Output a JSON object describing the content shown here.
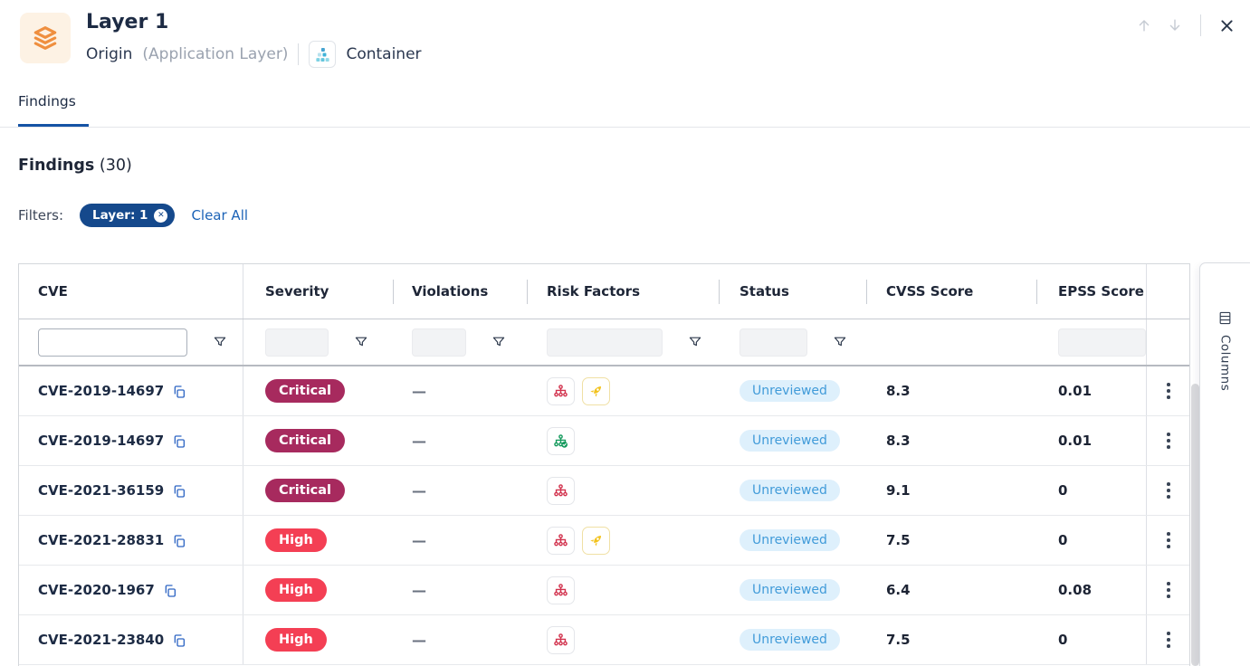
{
  "window": {
    "title": "Layer 1",
    "subtitle_primary": "Origin",
    "subtitle_secondary": "(Application Layer)",
    "asset_type_label": "Container"
  },
  "tabs": {
    "findings_label": "Findings"
  },
  "section": {
    "heading": "Findings",
    "count": "(30)",
    "filters_label": "Filters:",
    "filter_chip_label": "Layer: 1",
    "clear_all_label": "Clear All"
  },
  "table": {
    "headers": [
      "CVE",
      "Severity",
      "Violations",
      "Risk Factors",
      "Status",
      "CVSS Score",
      "EPSS Score"
    ],
    "rows": [
      {
        "cve": "CVE-2019-14697",
        "severity": "Critical",
        "violations": "—",
        "risk_factors": [
          "attack-vector-network",
          "exploit-exists"
        ],
        "status": "Unreviewed",
        "cvss": "8.3",
        "epss": "0.01"
      },
      {
        "cve": "CVE-2019-14697",
        "severity": "Critical",
        "violations": "—",
        "risk_factors": [
          "fix-available"
        ],
        "status": "Unreviewed",
        "cvss": "8.3",
        "epss": "0.01"
      },
      {
        "cve": "CVE-2021-36159",
        "severity": "Critical",
        "violations": "—",
        "risk_factors": [
          "attack-vector-network"
        ],
        "status": "Unreviewed",
        "cvss": "9.1",
        "epss": "0"
      },
      {
        "cve": "CVE-2021-28831",
        "severity": "High",
        "violations": "—",
        "risk_factors": [
          "attack-vector-network",
          "exploit-exists"
        ],
        "status": "Unreviewed",
        "cvss": "7.5",
        "epss": "0"
      },
      {
        "cve": "CVE-2020-1967",
        "severity": "High",
        "violations": "—",
        "risk_factors": [
          "attack-vector-network"
        ],
        "status": "Unreviewed",
        "cvss": "6.4",
        "epss": "0.08"
      },
      {
        "cve": "CVE-2021-23840",
        "severity": "High",
        "violations": "—",
        "risk_factors": [
          "attack-vector-network"
        ],
        "status": "Unreviewed",
        "cvss": "7.5",
        "epss": "0"
      }
    ]
  },
  "columns_panel_label": "Columns",
  "colors": {
    "severity": {
      "Critical": "#a72a5e",
      "High": "#f43f54"
    },
    "status_unreviewed_bg": "#def0fc",
    "status_unreviewed_text": "#419bd9",
    "accent_blue": "#1553a5",
    "filter_chip_bg": "#15498c",
    "risk_red": "#d2334e",
    "risk_yellow": "#f2c21d",
    "risk_green": "#159a5d",
    "layer_icon_orange": "#ef8f3f"
  }
}
